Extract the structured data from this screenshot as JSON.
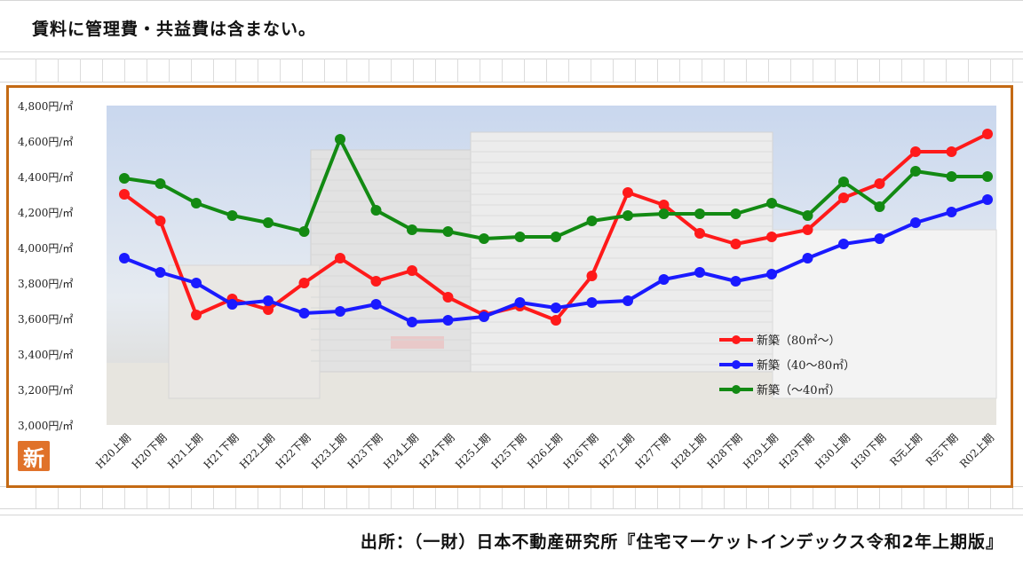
{
  "note": "賃料に管理費・共益費は含まない。",
  "source": "出所：（一財）日本不動産研究所『住宅マーケットインデックス令和2年上期版』",
  "badge": "新",
  "colors": {
    "frame": "#c46a14",
    "series_80_plus": "#ff1a1a",
    "series_40_80": "#1a1aff",
    "series_under_40": "#138a13",
    "badge": "#e0722a"
  },
  "chart_data": {
    "type": "line",
    "title": "",
    "xlabel": "",
    "ylabel": "",
    "ylim": [
      3000,
      4800
    ],
    "yticks": [
      3000,
      3200,
      3400,
      3600,
      3800,
      4000,
      4200,
      4400,
      4600,
      4800
    ],
    "ytick_labels": [
      "3,000円/㎡",
      "3,200円/㎡",
      "3,400円/㎡",
      "3,600円/㎡",
      "3,800円/㎡",
      "4,000円/㎡",
      "4,200円/㎡",
      "4,400円/㎡",
      "4,600円/㎡",
      "4,800円/㎡"
    ],
    "grid": false,
    "legend_position": "bottom-right",
    "categories": [
      "H20上期",
      "H20下期",
      "H21上期",
      "H21下期",
      "H22上期",
      "H22下期",
      "H23上期",
      "H23下期",
      "H24上期",
      "H24下期",
      "H25上期",
      "H25下期",
      "H26上期",
      "H26下期",
      "H27上期",
      "H27下期",
      "H28上期",
      "H28下期",
      "H29上期",
      "H29下期",
      "H30上期",
      "H30下期",
      "R元上期",
      "R元下期",
      "R02上期"
    ],
    "series": [
      {
        "name": "新築（80㎡～）",
        "color": "#ff1a1a",
        "values": [
          4300,
          4150,
          3620,
          3710,
          3650,
          3800,
          3940,
          3810,
          3870,
          3720,
          3620,
          3670,
          3590,
          3840,
          4310,
          4240,
          4080,
          4020,
          4060,
          4100,
          4280,
          4360,
          4540,
          4540,
          4640
        ]
      },
      {
        "name": "新築（40～80㎡）",
        "color": "#1a1aff",
        "values": [
          3940,
          3860,
          3800,
          3680,
          3700,
          3630,
          3640,
          3680,
          3580,
          3590,
          3610,
          3690,
          3660,
          3690,
          3700,
          3820,
          3860,
          3810,
          3850,
          3940,
          4020,
          4050,
          4140,
          4200,
          4270
        ]
      },
      {
        "name": "新築（～40㎡）",
        "color": "#138a13",
        "values": [
          4390,
          4360,
          4250,
          4180,
          4140,
          4090,
          4610,
          4210,
          4100,
          4090,
          4050,
          4060,
          4060,
          4150,
          4180,
          4190,
          4190,
          4190,
          4250,
          4180,
          4370,
          4230,
          4430,
          4400,
          4400
        ]
      }
    ]
  }
}
